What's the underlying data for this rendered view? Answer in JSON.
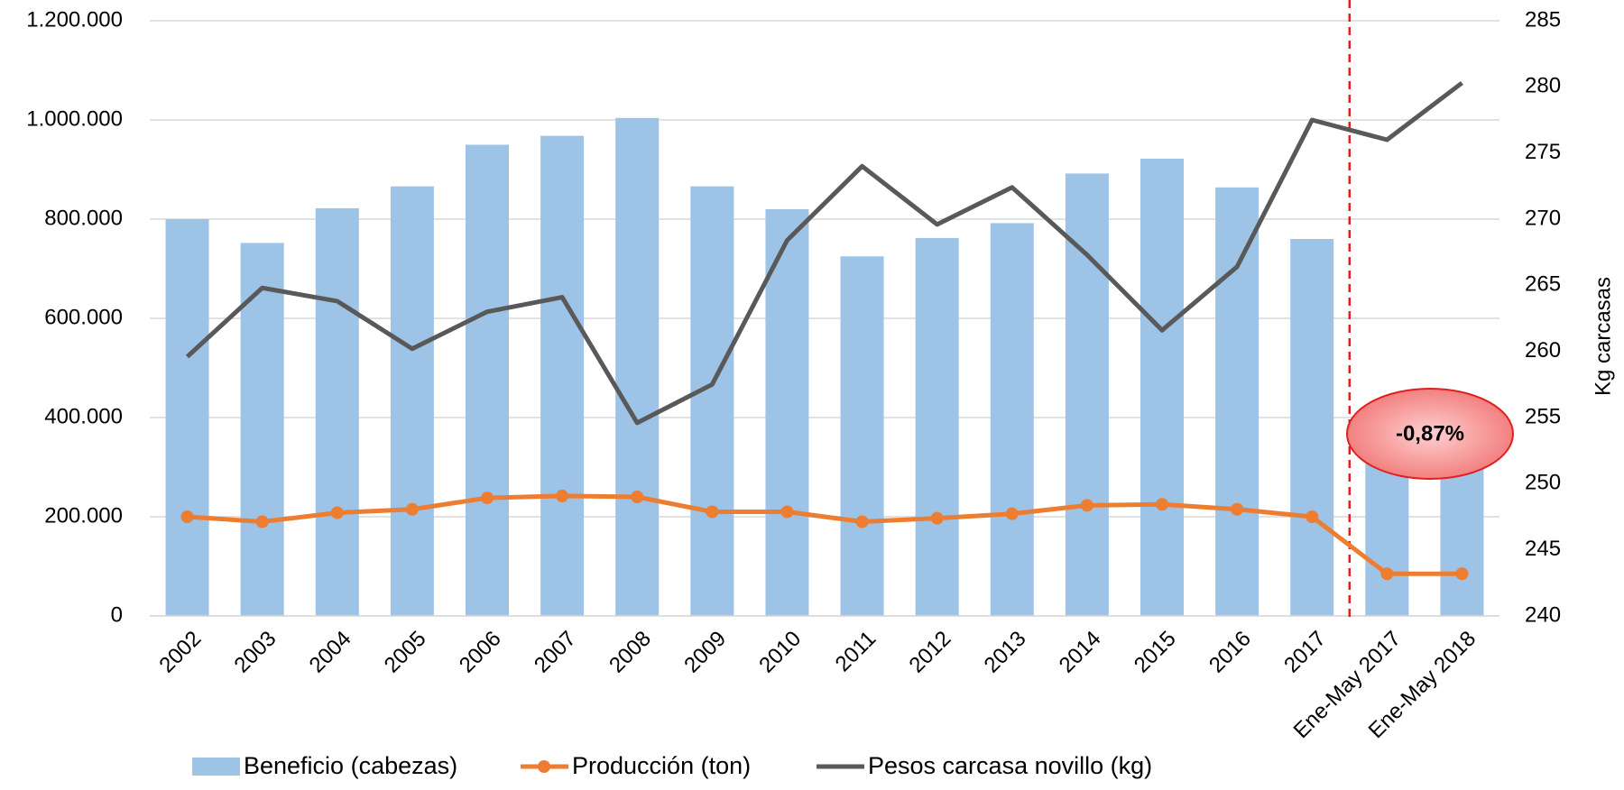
{
  "chart_data": {
    "type": "bar",
    "categories": [
      "2002",
      "2003",
      "2004",
      "2005",
      "2006",
      "2007",
      "2008",
      "2009",
      "2010",
      "2011",
      "2012",
      "2013",
      "2014",
      "2015",
      "2016",
      "2017",
      "Ene-May 2017",
      "Ene-May 2018"
    ],
    "series": [
      {
        "name": "Beneficio (cabezas)",
        "type": "bar",
        "color": "#9dc3e6",
        "values": [
          800000,
          752000,
          822000,
          866000,
          950000,
          968000,
          1004000,
          866000,
          820000,
          725000,
          762000,
          792000,
          892000,
          922000,
          864000,
          760000,
          320000,
          318000
        ]
      },
      {
        "name": "Producción (ton)",
        "type": "line",
        "marker": true,
        "color": "#ed7d31",
        "values": [
          200000,
          190000,
          208000,
          215000,
          238000,
          242000,
          240000,
          210000,
          210000,
          190000,
          197000,
          206000,
          223000,
          225000,
          215000,
          200000,
          85000,
          85000
        ]
      },
      {
        "name": "Pesos carcasa novillo (kg)",
        "type": "line",
        "marker": false,
        "axis": "y2",
        "color": "#595959",
        "values": [
          259.6,
          264.8,
          263.8,
          260.2,
          263.0,
          264.1,
          254.6,
          257.5,
          268.4,
          274.0,
          269.6,
          272.4,
          267.3,
          261.6,
          266.4,
          277.5,
          276.0,
          280.3
        ]
      }
    ],
    "ylim": [
      0,
      1200000
    ],
    "yticks": [
      0,
      {
        "value": 200000,
        "label": "200.000"
      },
      {
        "value": 400000,
        "label": "400.000"
      },
      {
        "value": 600000,
        "label": "600.000"
      },
      {
        "value": 800000,
        "label": "800.000"
      },
      {
        "value": 1000000,
        "label": "1.000.000"
      },
      {
        "value": 1200000,
        "label": "1.200.000"
      }
    ],
    "y2lim": [
      240,
      285
    ],
    "y2ticks": [
      240,
      245,
      250,
      255,
      260,
      265,
      270,
      275,
      280,
      285
    ],
    "y2label": "Kg carcasas",
    "annotation": "-0,87%",
    "grid": true,
    "legend": "bottom"
  }
}
